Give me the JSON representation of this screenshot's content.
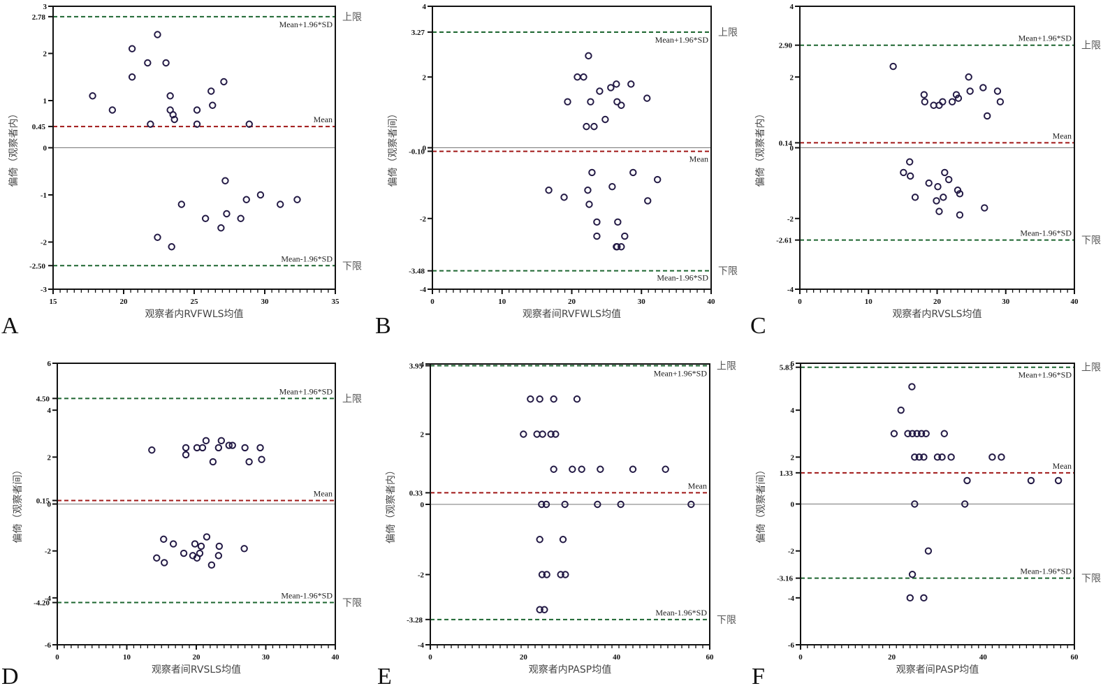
{
  "chart_data": [
    {
      "type": "scatter",
      "panel": "A",
      "title": "",
      "xlabel": "观察者内RVFWLS均值",
      "ylabel": "偏倚（观察者内）",
      "xlim": [
        15,
        35
      ],
      "ylim": [
        -3,
        3
      ],
      "xticks": [
        15,
        20,
        25,
        30,
        35
      ],
      "yticks": [
        -3,
        -2,
        -1,
        0,
        1,
        2,
        3
      ],
      "grid": false,
      "mean": 0.45,
      "upper_loa": 2.78,
      "lower_loa": -2.5,
      "mean_label": "Mean",
      "upper_label": "Mean+1.96*SD",
      "lower_label": "Mean-1.96*SD",
      "upper_side_label": "上限",
      "lower_side_label": "下限",
      "mean_tick_text": "0.45",
      "upper_tick_text": "2.78",
      "lower_tick_text": "-2.50",
      "x": [
        17.8,
        19.2,
        20.6,
        20.6,
        21.7,
        22.4,
        21.9,
        23.0,
        23.3,
        23.3,
        23.5,
        23.6,
        25.2,
        25.2,
        26.2,
        26.3,
        27.1,
        28.9,
        22.4,
        23.4,
        24.1,
        25.8,
        26.9,
        27.2,
        27.3,
        28.3,
        28.7,
        29.7,
        31.1,
        32.3
      ],
      "y": [
        1.1,
        0.8,
        2.1,
        1.5,
        1.8,
        2.4,
        0.5,
        1.8,
        1.1,
        0.8,
        0.7,
        0.6,
        0.8,
        0.5,
        1.2,
        0.9,
        1.4,
        0.5,
        -1.9,
        -2.1,
        -1.2,
        -1.5,
        -1.7,
        -0.7,
        -1.4,
        -1.5,
        -1.1,
        -1.0,
        -1.2,
        -1.1
      ]
    },
    {
      "type": "scatter",
      "panel": "B",
      "xlabel": "观察者间RVFWLS均值",
      "ylabel": "偏倚（观察者间）",
      "xlim": [
        0,
        40
      ],
      "ylim": [
        -4,
        4
      ],
      "xticks": [
        0,
        10,
        20,
        30,
        40
      ],
      "yticks": [
        -4,
        -2,
        0,
        2,
        4
      ],
      "grid": false,
      "mean": -0.1,
      "upper_loa": 3.27,
      "lower_loa": -3.48,
      "mean_label": "Mean",
      "upper_label": "Mean+1.96*SD",
      "lower_label": "Mean-1.96*SD",
      "upper_side_label": "上限",
      "lower_side_label": "下限",
      "mean_tick_text": "-0.10",
      "upper_tick_text": "3.27",
      "lower_tick_text": "-3.48",
      "x": [
        19.4,
        20.8,
        21.7,
        22.1,
        22.4,
        22.7,
        23.2,
        24.0,
        24.8,
        25.6,
        26.4,
        26.5,
        27.1,
        28.5,
        30.8,
        22.9,
        16.7,
        18.9,
        22.3,
        22.5,
        23.6,
        23.6,
        25.8,
        26.6,
        26.4,
        27.6,
        26.5,
        27.1,
        28.8,
        30.9,
        32.3
      ],
      "y": [
        1.3,
        2.0,
        2.0,
        0.6,
        2.6,
        1.3,
        0.6,
        1.6,
        0.8,
        1.7,
        1.8,
        1.3,
        1.2,
        1.8,
        1.4,
        -0.7,
        -1.2,
        -1.4,
        -1.2,
        -1.6,
        -2.1,
        -2.5,
        -1.1,
        -2.1,
        -2.8,
        -2.5,
        -2.8,
        -2.8,
        -0.7,
        -1.5,
        -0.9
      ]
    },
    {
      "type": "scatter",
      "panel": "C",
      "xlabel": "观察者内RVSLS均值",
      "ylabel": "偏倚（观察者内）",
      "xlim": [
        0,
        40
      ],
      "ylim": [
        -4,
        4
      ],
      "xticks": [
        0,
        10,
        20,
        30,
        40
      ],
      "yticks": [
        -4,
        -2,
        0,
        2,
        4
      ],
      "grid": false,
      "mean": 0.14,
      "upper_loa": 2.9,
      "lower_loa": -2.61,
      "mean_label": "Mean",
      "upper_label": "Mean+1.96*SD",
      "lower_label": "Mean-1.96*SD",
      "upper_side_label": "上限",
      "lower_side_label": "下限",
      "mean_tick_text": "0.14",
      "upper_tick_text": "2.90",
      "lower_tick_text": "-2.61",
      "x": [
        13.6,
        18.1,
        18.2,
        19.5,
        20.3,
        20.8,
        22.2,
        22.8,
        23.1,
        24.6,
        24.8,
        26.7,
        27.3,
        28.8,
        29.2,
        16.0,
        15.1,
        16.1,
        16.8,
        18.8,
        20.1,
        20.3,
        19.9,
        20.9,
        21.1,
        21.7,
        23.0,
        23.3,
        23.3,
        26.9
      ],
      "y": [
        2.3,
        1.5,
        1.3,
        1.2,
        1.2,
        1.3,
        1.3,
        1.5,
        1.4,
        2.0,
        1.6,
        1.7,
        0.9,
        1.6,
        1.3,
        -0.4,
        -0.7,
        -0.8,
        -1.4,
        -1.0,
        -1.1,
        -1.8,
        -1.5,
        -1.4,
        -0.7,
        -0.9,
        -1.2,
        -1.3,
        -1.9,
        -1.7
      ]
    },
    {
      "type": "scatter",
      "panel": "D",
      "xlabel": "观察者间RVSLS均值",
      "ylabel": "偏倚（观察者间）",
      "xlim": [
        0,
        40
      ],
      "ylim": [
        -6,
        6
      ],
      "xticks": [
        0,
        10,
        20,
        30,
        40
      ],
      "yticks": [
        -6,
        -4,
        -2,
        0,
        2,
        4,
        6
      ],
      "grid": false,
      "mean": 0.15,
      "upper_loa": 4.5,
      "lower_loa": -4.2,
      "mean_label": "Mean",
      "upper_label": "Mean+1.96*SD",
      "lower_label": "Mean-1.96*SD",
      "upper_side_label": "上限",
      "lower_side_label": "下限",
      "mean_tick_text": "0.15",
      "upper_tick_text": "4.50",
      "lower_tick_text": "-4.20",
      "x": [
        13.6,
        18.5,
        18.5,
        20.1,
        20.9,
        21.4,
        22.4,
        23.2,
        23.6,
        24.7,
        25.2,
        27.0,
        27.6,
        29.2,
        29.4,
        14.3,
        15.4,
        15.3,
        16.7,
        18.2,
        19.5,
        19.8,
        20.1,
        20.5,
        20.7,
        21.5,
        22.2,
        23.2,
        23.3,
        26.9
      ],
      "y": [
        2.3,
        2.4,
        2.1,
        2.4,
        2.4,
        2.7,
        1.8,
        2.4,
        2.7,
        2.5,
        2.5,
        2.4,
        1.8,
        2.4,
        1.9,
        -2.3,
        -2.5,
        -1.5,
        -1.7,
        -2.1,
        -2.2,
        -1.7,
        -2.3,
        -2.1,
        -1.8,
        -1.4,
        -2.6,
        -2.2,
        -1.8,
        -1.9
      ]
    },
    {
      "type": "scatter",
      "panel": "E",
      "xlabel": "观察者内PASP均值",
      "ylabel": "偏倚（观察者内）",
      "xlim": [
        0,
        60
      ],
      "ylim": [
        -4,
        4
      ],
      "xticks": [
        0,
        20,
        40,
        60
      ],
      "yticks": [
        -4,
        -2,
        0,
        2,
        4
      ],
      "grid": false,
      "mean": 0.33,
      "upper_loa": 3.95,
      "lower_loa": -3.28,
      "mean_label": "Mean",
      "upper_label": "Mean+1.96*SD",
      "lower_label": "Mean-1.96*SD",
      "upper_side_label": "上限",
      "lower_side_label": "下限",
      "mean_tick_text": "0.33",
      "upper_tick_text": "3.95",
      "lower_tick_text": "-3.28",
      "x": [
        21.5,
        23.5,
        26.5,
        31.5,
        20.0,
        22.9,
        24.1,
        25.9,
        26.9,
        26.5,
        30.5,
        32.5,
        36.5,
        43.5,
        50.5,
        23.9,
        24.9,
        28.9,
        35.9,
        40.9,
        56.0,
        23.5,
        28.5,
        24.0,
        25.0,
        28.0,
        29.0,
        23.5,
        24.5
      ],
      "y": [
        3.0,
        3.0,
        3.0,
        3.0,
        2.0,
        2.0,
        2.0,
        2.0,
        2.0,
        1.0,
        1.0,
        1.0,
        1.0,
        1.0,
        1.0,
        0.0,
        0.0,
        0.0,
        0.0,
        0.0,
        0.0,
        -1.0,
        -1.0,
        -2.0,
        -2.0,
        -2.0,
        -2.0,
        -3.0,
        -3.0
      ]
    },
    {
      "type": "scatter",
      "panel": "F",
      "xlabel": "观察者间PASP均值",
      "ylabel": "偏倚（观察者间）",
      "xlim": [
        0,
        60
      ],
      "ylim": [
        -6,
        6
      ],
      "xticks": [
        0,
        20,
        40,
        60
      ],
      "yticks": [
        -6,
        -4,
        -2,
        0,
        2,
        4,
        6
      ],
      "grid": false,
      "mean": 1.33,
      "upper_loa": 5.83,
      "lower_loa": -3.16,
      "mean_label": "Mean",
      "upper_label": "Mean+1.96*SD",
      "lower_label": "Mean-1.96*SD",
      "upper_side_label": "上限",
      "lower_side_label": "下限",
      "mean_tick_text": "1.33",
      "upper_tick_text": "5.83",
      "lower_tick_text": "-3.16",
      "x": [
        24.4,
        22.0,
        20.5,
        23.5,
        24.5,
        25.5,
        26.5,
        27.5,
        31.5,
        25.0,
        26.0,
        27.0,
        30.0,
        31.0,
        33.0,
        42.0,
        44.0,
        36.5,
        50.5,
        56.5,
        25.0,
        36.0,
        28.0,
        24.5,
        24.0,
        27.0
      ],
      "y": [
        5.0,
        4.0,
        3.0,
        3.0,
        3.0,
        3.0,
        3.0,
        3.0,
        3.0,
        2.0,
        2.0,
        2.0,
        2.0,
        2.0,
        2.0,
        2.0,
        2.0,
        1.0,
        1.0,
        1.0,
        0.0,
        0.0,
        -2.0,
        -3.0,
        -4.0,
        -4.0
      ]
    }
  ]
}
